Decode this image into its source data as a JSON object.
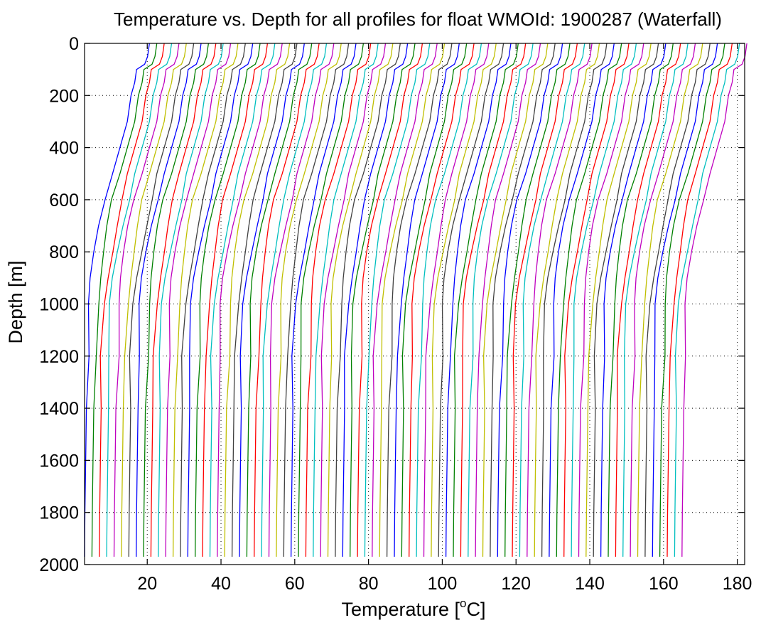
{
  "chart_data": {
    "type": "line",
    "title": "Temperature vs. Depth for all profiles for float WMOId: 1900287 (Waterfall)",
    "xlabel": {
      "prefix": "Temperature [",
      "sup": "o",
      "suffix": "C]"
    },
    "ylabel": "Depth [m]",
    "xlim": [
      3,
      182
    ],
    "ylim": [
      0,
      2000
    ],
    "y_reversed": true,
    "grid": "dotted",
    "xticks": [
      20,
      40,
      60,
      80,
      100,
      120,
      140,
      160,
      180
    ],
    "yticks": [
      0,
      200,
      400,
      600,
      800,
      1000,
      1200,
      1400,
      1600,
      1800,
      2000
    ],
    "xtick_labels": [
      "20",
      "40",
      "60",
      "80",
      "100",
      "120",
      "140",
      "160",
      "180"
    ],
    "ytick_labels": [
      "0",
      "200",
      "400",
      "600",
      "800",
      "1000",
      "1200",
      "1400",
      "1600",
      "1800",
      "2000"
    ],
    "series_colors": [
      "#0000ff",
      "#008000",
      "#ff0000",
      "#00bfbf",
      "#bf00bf",
      "#bfbf00",
      "#404040"
    ],
    "profile_count": 82,
    "profile_offset_step": 2,
    "profile_depths": [
      0,
      20,
      50,
      80,
      100,
      150,
      200,
      300,
      400,
      500,
      600,
      700,
      800,
      900,
      1000,
      1200,
      1400,
      1600,
      1800,
      1970
    ],
    "profile_base_temps": [
      20.5,
      20.3,
      20.0,
      19.2,
      17.0,
      16.5,
      15.5,
      14.5,
      12.5,
      10.5,
      8.7,
      7.2,
      6.0,
      4.9,
      4.2,
      3.7,
      3.4,
      3.2,
      3.0,
      2.9
    ],
    "first_profile_start_x": 3
  }
}
